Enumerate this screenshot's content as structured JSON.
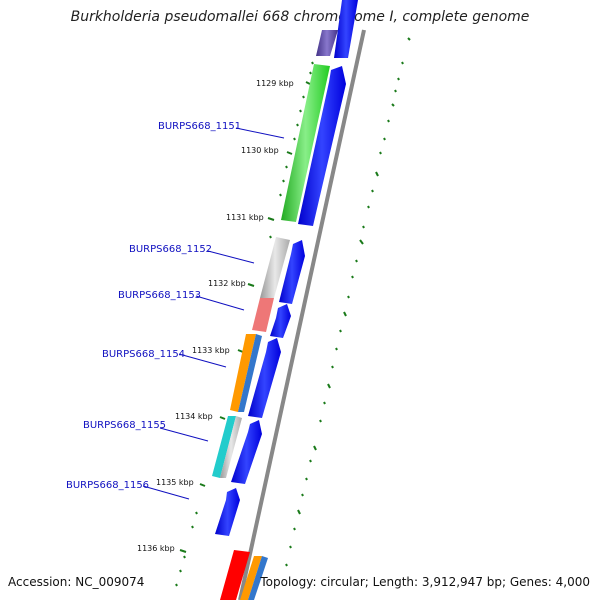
{
  "map": {
    "title": "Burkholderia pseudomallei 668 chromosome I, complete genome",
    "accession": "Accession: NC_009074",
    "topology": "Topology: circular; Length: 3,912,947 bp; Genes: 4,000"
  },
  "kbp_labels": [
    "1129 kbp",
    "1130 kbp",
    "1131 kbp",
    "1132 kbp",
    "1133 kbp",
    "1134 kbp",
    "1135 kbp",
    "1136 kbp"
  ],
  "gene_labels": [
    "BURPS668_1151",
    "BURPS668_1152",
    "BURPS668_1153",
    "BURPS668_1154",
    "BURPS668_1155",
    "BURPS668_1156"
  ],
  "colors": {
    "backbone": "#888888",
    "cds": "#0000ee",
    "tick": "#1a7a1a",
    "label_line": "#1010c0",
    "gc_green": "#22cc22",
    "gc_gray": "#b8b8b8",
    "gc_red": "#ee7777",
    "gc_orange": "#ff9900",
    "gc_blue": "#3377cc",
    "gc_cyan": "#22cccc",
    "gc_purple": "#554499",
    "gc_bright_red": "#ff0000"
  }
}
